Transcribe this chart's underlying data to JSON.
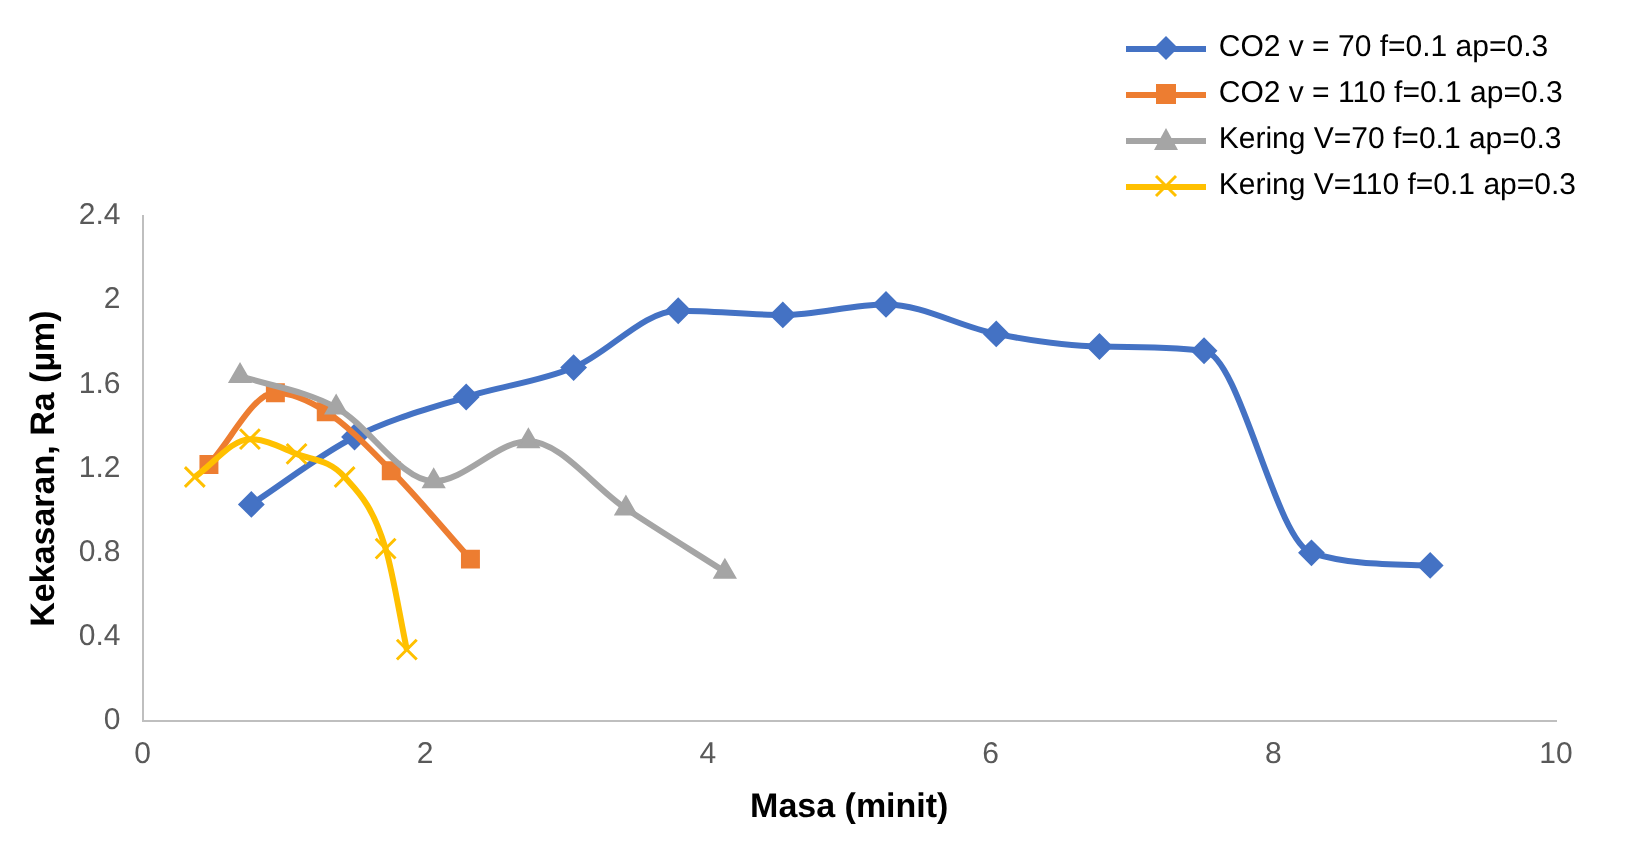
{
  "chart_data": {
    "type": "line",
    "xlabel": "Masa (minit)",
    "ylabel": "Kekasaran, Ra (µm)",
    "xlim": [
      0,
      10
    ],
    "xticks": [
      0,
      2,
      4,
      6,
      8,
      10
    ],
    "ylim": [
      0,
      2.4
    ],
    "yticks": [
      0,
      0.4,
      0.8,
      1.2,
      1.6,
      2,
      2.4
    ],
    "grid": false,
    "legend": "top right",
    "series": [
      {
        "name": "CO2 v = 70 f=0.1 ap=0.3",
        "color": "#4472c4",
        "marker": "diamond",
        "x": [
          0.77,
          1.5,
          2.29,
          3.05,
          3.79,
          4.53,
          5.26,
          6.04,
          6.77,
          7.51,
          8.27,
          9.11
        ],
        "values": [
          1.03,
          1.35,
          1.54,
          1.68,
          1.95,
          1.93,
          1.98,
          1.84,
          1.78,
          1.76,
          0.8,
          0.74
        ]
      },
      {
        "name": "CO2 v = 110 f=0.1 ap=0.3",
        "color": "#ed7d31",
        "marker": "square",
        "x": [
          0.47,
          0.94,
          1.3,
          1.76,
          2.32
        ],
        "values": [
          1.22,
          1.56,
          1.47,
          1.19,
          0.77
        ]
      },
      {
        "name": "Kering V=70 f=0.1 ap=0.3",
        "color": "#a5a5a5",
        "marker": "triangle",
        "x": [
          0.69,
          1.37,
          2.06,
          2.73,
          3.42,
          4.12
        ],
        "values": [
          1.64,
          1.49,
          1.14,
          1.33,
          1.01,
          0.71
        ]
      },
      {
        "name": "Kering V=110 f=0.1 ap=0.3",
        "color": "#ffc000",
        "marker": "cross",
        "x": [
          0.37,
          0.76,
          1.09,
          1.43,
          1.72,
          1.87
        ],
        "values": [
          1.16,
          1.34,
          1.27,
          1.16,
          0.82,
          0.34
        ]
      }
    ]
  }
}
